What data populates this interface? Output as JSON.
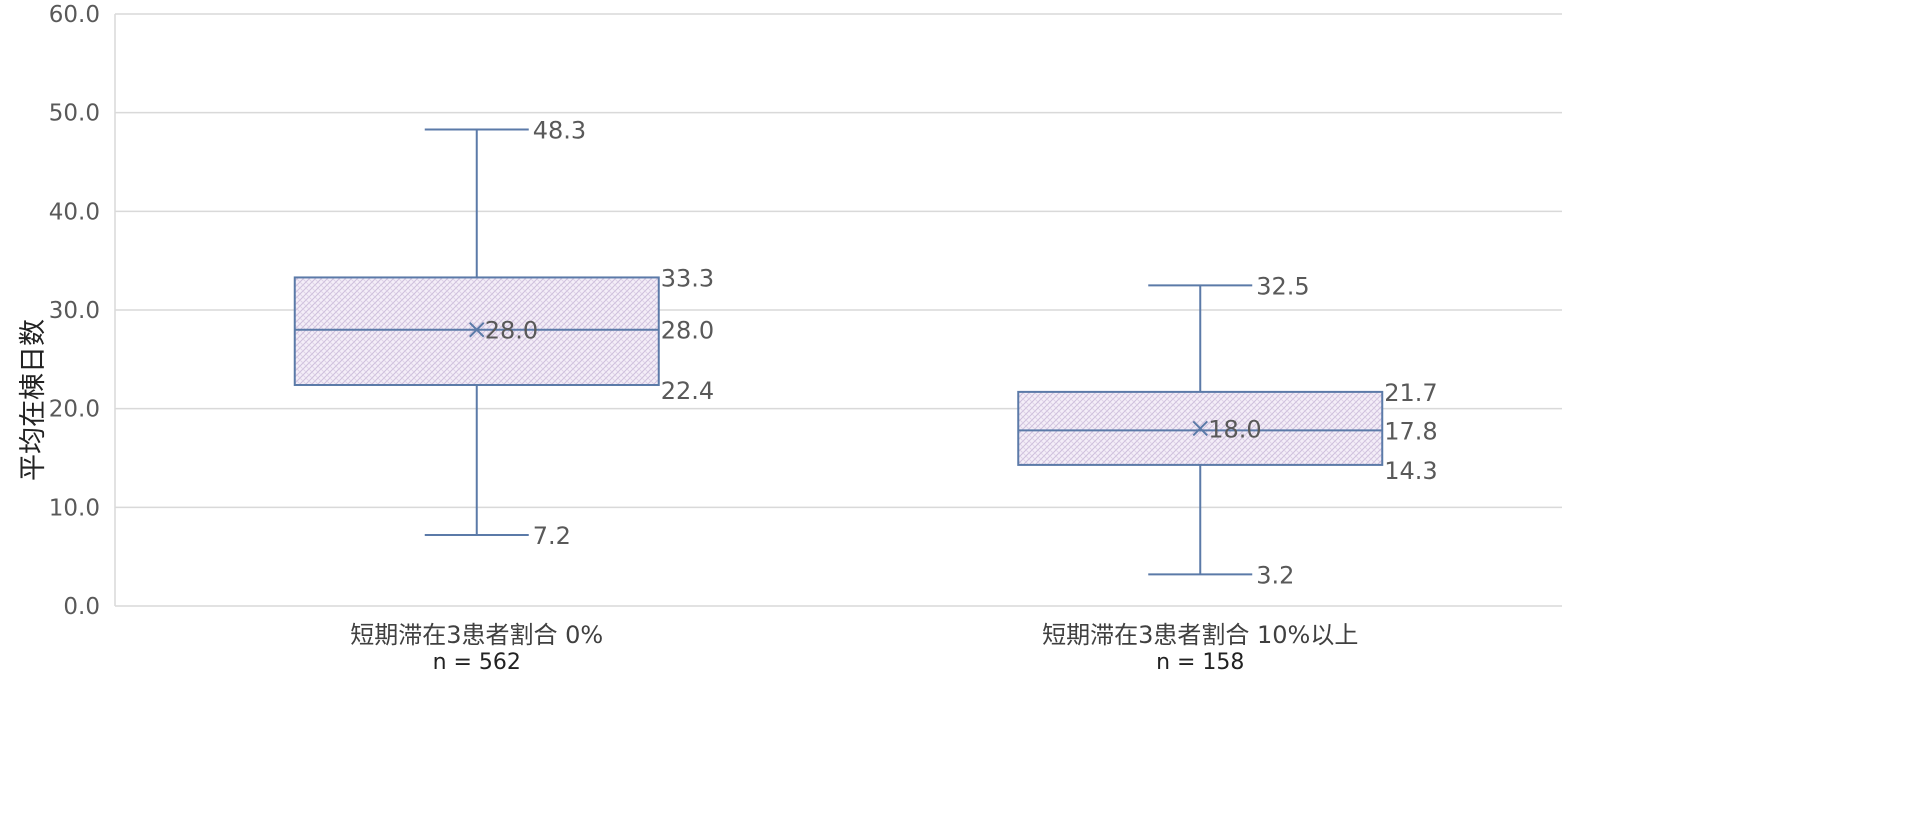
{
  "chart_data": {
    "type": "box",
    "title": "",
    "ylabel": "平均在棟日数",
    "xlabel": "",
    "ylim": [
      0,
      60
    ],
    "yticks": [
      "0.0",
      "10.0",
      "20.0",
      "30.0",
      "40.0",
      "50.0",
      "60.0"
    ],
    "grid": true,
    "legend": "none",
    "box_color": "#5b7aa8",
    "fill_color": "#ece4f2",
    "grid_color": "#d9d9d9",
    "categories": [
      {
        "label": "短期滞在3患者割合 0%",
        "n": "n = 562",
        "min": 7.2,
        "q1": 22.4,
        "median": 28.0,
        "q3": 33.3,
        "max": 48.3,
        "mean": 28.0,
        "labels": {
          "max": "48.3",
          "q3": "33.3",
          "median": "28.0",
          "q1": "22.4",
          "min": "7.2",
          "mean": "28.0"
        }
      },
      {
        "label": "短期滞在3患者割合 10%以上",
        "n": "n = 158",
        "min": 3.2,
        "q1": 14.3,
        "median": 17.8,
        "q3": 21.7,
        "max": 32.5,
        "mean": 18.0,
        "labels": {
          "max": "32.5",
          "q3": "21.7",
          "median": "17.8",
          "q1": "14.3",
          "min": "3.2",
          "mean": "18.0"
        }
      }
    ]
  }
}
